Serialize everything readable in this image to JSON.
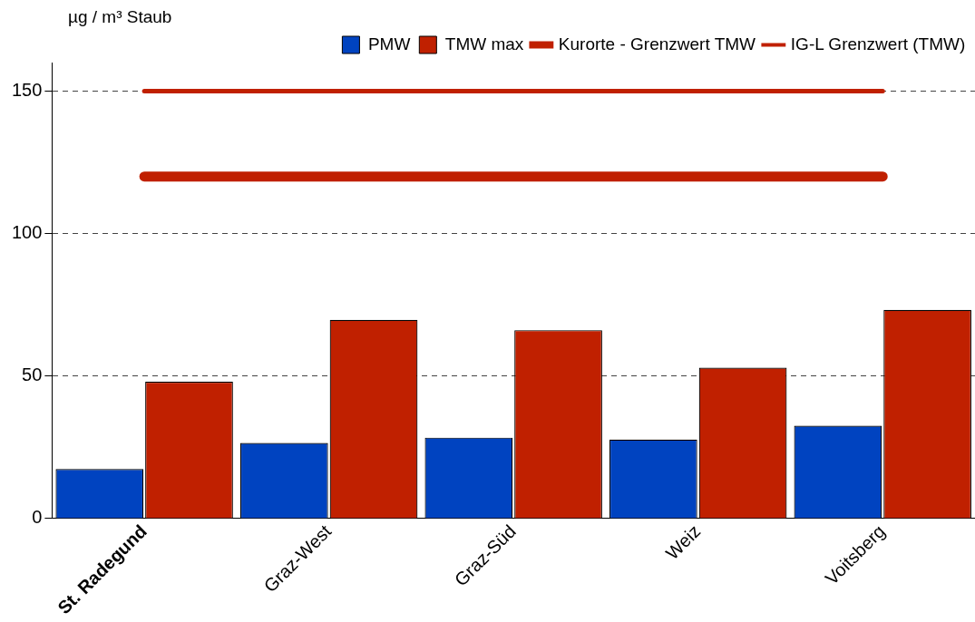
{
  "chart_data": {
    "type": "bar",
    "ylabel": "µg / m³ Staub",
    "categories": [
      "St. Radegund",
      "Graz-West",
      "Graz-Süd",
      "Weiz",
      "Voitsberg"
    ],
    "series": [
      {
        "name": "PMW",
        "color": "#0043c0",
        "values": [
          17.4,
          26.5,
          28.4,
          27.7,
          32.6
        ]
      },
      {
        "name": "TMW max",
        "color": "#c02000",
        "values": [
          48,
          69.7,
          66.1,
          52.9,
          73.2
        ]
      },
      {
        "name": "Kurorte - Grenzwert TMW",
        "type": "line",
        "color": "#c02000",
        "marker": "none",
        "values": [
          120,
          120,
          120,
          120,
          120
        ]
      },
      {
        "name": "IG-L Grenzwert (TMW)",
        "type": "line",
        "color": "#c02000",
        "marker": "none",
        "values": [
          150,
          150,
          150,
          150,
          150
        ]
      }
    ],
    "ylim": [
      0,
      160
    ],
    "yticks": [
      0,
      50,
      100,
      150
    ],
    "grid": "y",
    "legend": "top right"
  }
}
